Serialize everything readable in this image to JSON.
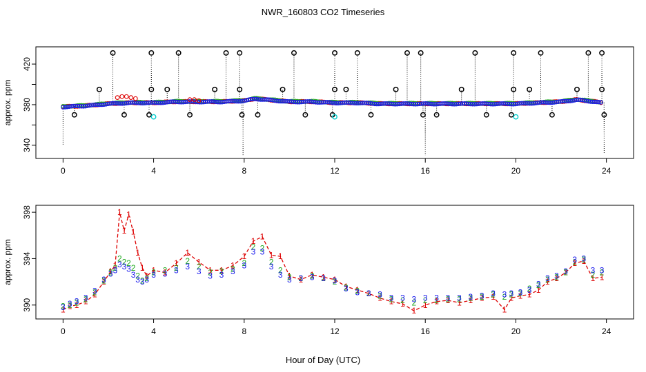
{
  "title": "NWR_160803  CO2 Timeseries",
  "xlabel": "Hour of Day (UTC)",
  "colors": {
    "s1": "#dd0000",
    "s2": "#22aa22",
    "s3": "#1a1aee",
    "flag": "#000000",
    "cyan": "#00cccc"
  },
  "chart_data": [
    {
      "type": "scatter",
      "panel": "top",
      "ylabel": "approx. ppm",
      "xlim": [
        -1.2,
        25.2
      ],
      "ylim": [
        327,
        437
      ],
      "xticks": [
        0,
        4,
        8,
        12,
        16,
        20,
        24
      ],
      "yticks": [
        340,
        360,
        380,
        400,
        420
      ],
      "ytick_labels": [
        "340",
        "",
        "380",
        "",
        "420"
      ],
      "baseline": [
        [
          0,
          378
        ],
        [
          1,
          379
        ],
        [
          2,
          381
        ],
        [
          3,
          382
        ],
        [
          4,
          382
        ],
        [
          5,
          383
        ],
        [
          6,
          383
        ],
        [
          7,
          383
        ],
        [
          8,
          384
        ],
        [
          8.5,
          386
        ],
        [
          9,
          385
        ],
        [
          10,
          383
        ],
        [
          11,
          383
        ],
        [
          12,
          382
        ],
        [
          13,
          382
        ],
        [
          14,
          381
        ],
        [
          15,
          381
        ],
        [
          16,
          381
        ],
        [
          17,
          381
        ],
        [
          18,
          381
        ],
        [
          19,
          381
        ],
        [
          20,
          381
        ],
        [
          21,
          382
        ],
        [
          22,
          383
        ],
        [
          22.7,
          385
        ],
        [
          23.5,
          383
        ],
        [
          23.8,
          382
        ]
      ],
      "red_bump": [
        [
          2.4,
          387
        ],
        [
          2.6,
          388
        ],
        [
          2.8,
          388
        ],
        [
          3.0,
          387
        ],
        [
          3.2,
          386
        ],
        [
          5.6,
          385
        ],
        [
          5.8,
          385
        ],
        [
          6.0,
          384
        ]
      ],
      "flags_high": [
        2.2,
        3.9,
        5.1,
        7.2,
        7.8,
        10.2,
        12.0,
        13.0,
        15.2,
        15.8,
        18.2,
        19.9,
        21.1,
        23.2,
        23.8
      ],
      "flags_mid": [
        1.6,
        3.9,
        4.6,
        6.7,
        7.8,
        9.7,
        12.0,
        12.5,
        14.7,
        17.6,
        19.9,
        20.6,
        22.7,
        23.8
      ],
      "flags_low": [
        0.5,
        2.7,
        3.8,
        5.6,
        7.9,
        8.6,
        10.7,
        11.9,
        13.6,
        15.9,
        16.5,
        18.7,
        19.8,
        21.6,
        23.9
      ],
      "cyan_points": [
        4.0,
        12.0,
        20.0
      ],
      "drops_low": [
        [
          0,
          340
        ],
        [
          7.95,
          330
        ],
        [
          16.0,
          330
        ],
        [
          23.9,
          332
        ]
      ],
      "drops_mid": [
        [
          16.0,
          352
        ],
        [
          23.9,
          352
        ]
      ],
      "flag_levels": {
        "high": 431,
        "mid": 395,
        "low": 370
      }
    },
    {
      "type": "scatter",
      "panel": "bottom",
      "ylabel": "approx. ppm",
      "xlim": [
        -1.2,
        25.2
      ],
      "ylim": [
        388.8,
        398.6
      ],
      "xticks": [
        0,
        4,
        8,
        12,
        16,
        20,
        24
      ],
      "yticks": [
        390,
        394,
        398
      ],
      "series": [
        {
          "name": "1",
          "label_char": "1",
          "color": "#dd0000",
          "values": [
            [
              0.0,
              389.6
            ],
            [
              0.3,
              389.9
            ],
            [
              0.6,
              390.0
            ],
            [
              1.0,
              390.3
            ],
            [
              1.4,
              390.9
            ],
            [
              1.8,
              392.0
            ],
            [
              2.1,
              392.9
            ],
            [
              2.3,
              393.4
            ],
            [
              2.5,
              398.0
            ],
            [
              2.7,
              396.4
            ],
            [
              2.9,
              397.8
            ],
            [
              3.1,
              396.3
            ],
            [
              3.3,
              394.5
            ],
            [
              3.5,
              393.2
            ],
            [
              3.7,
              392.5
            ],
            [
              4.0,
              393.0
            ],
            [
              4.5,
              392.8
            ],
            [
              5.0,
              393.6
            ],
            [
              5.5,
              394.5
            ],
            [
              6.0,
              393.7
            ],
            [
              6.5,
              393.0
            ],
            [
              7.0,
              393.0
            ],
            [
              7.5,
              393.4
            ],
            [
              8.0,
              394.2
            ],
            [
              8.4,
              395.5
            ],
            [
              8.8,
              395.9
            ],
            [
              9.2,
              394.3
            ],
            [
              9.6,
              394.2
            ],
            [
              10.0,
              392.5
            ],
            [
              10.5,
              392.2
            ],
            [
              11.0,
              392.6
            ],
            [
              11.5,
              392.4
            ],
            [
              12.0,
              392.2
            ],
            [
              12.5,
              391.6
            ],
            [
              13.0,
              391.3
            ],
            [
              13.5,
              391.0
            ],
            [
              14.0,
              390.6
            ],
            [
              14.5,
              390.3
            ],
            [
              15.0,
              390.1
            ],
            [
              15.5,
              389.5
            ],
            [
              16.0,
              390.0
            ],
            [
              16.5,
              390.3
            ],
            [
              17.0,
              390.4
            ],
            [
              17.5,
              390.2
            ],
            [
              18.0,
              390.4
            ],
            [
              18.5,
              390.6
            ],
            [
              19.0,
              390.7
            ],
            [
              19.5,
              389.6
            ],
            [
              19.8,
              390.6
            ],
            [
              20.2,
              390.8
            ],
            [
              20.6,
              390.9
            ],
            [
              21.0,
              391.3
            ],
            [
              21.4,
              392.0
            ],
            [
              21.8,
              392.3
            ],
            [
              22.2,
              392.8
            ],
            [
              22.6,
              393.6
            ],
            [
              23.0,
              393.8
            ],
            [
              23.4,
              392.3
            ],
            [
              23.8,
              392.4
            ]
          ]
        },
        {
          "name": "2",
          "label_char": "2",
          "color": "#22aa22",
          "values": [
            [
              0.0,
              389.9
            ],
            [
              0.3,
              390.0
            ],
            [
              0.6,
              390.2
            ],
            [
              1.0,
              390.5
            ],
            [
              1.4,
              391.1
            ],
            [
              1.8,
              392.1
            ],
            [
              2.1,
              392.8
            ],
            [
              2.3,
              393.2
            ],
            [
              2.5,
              394.0
            ],
            [
              2.7,
              393.7
            ],
            [
              2.9,
              393.6
            ],
            [
              3.1,
              393.2
            ],
            [
              3.3,
              392.5
            ],
            [
              3.5,
              392.1
            ],
            [
              3.7,
              392.3
            ],
            [
              4.0,
              392.8
            ],
            [
              4.5,
              393.0
            ],
            [
              5.0,
              393.2
            ],
            [
              5.5,
              393.8
            ],
            [
              6.0,
              393.3
            ],
            [
              6.5,
              392.8
            ],
            [
              7.0,
              392.9
            ],
            [
              7.5,
              393.1
            ],
            [
              8.0,
              393.6
            ],
            [
              8.4,
              395.0
            ],
            [
              8.8,
              394.9
            ],
            [
              9.2,
              393.7
            ],
            [
              9.6,
              393.0
            ],
            [
              10.0,
              392.4
            ],
            [
              10.5,
              392.3
            ],
            [
              11.0,
              392.5
            ],
            [
              11.5,
              392.3
            ],
            [
              12.0,
              392.0
            ],
            [
              12.5,
              391.5
            ],
            [
              13.0,
              391.2
            ],
            [
              13.5,
              391.0
            ],
            [
              14.0,
              390.8
            ],
            [
              14.5,
              390.5
            ],
            [
              15.0,
              390.4
            ],
            [
              15.5,
              390.2
            ],
            [
              16.0,
              390.4
            ],
            [
              16.5,
              390.4
            ],
            [
              17.0,
              390.5
            ],
            [
              17.5,
              390.5
            ],
            [
              18.0,
              390.6
            ],
            [
              18.5,
              390.7
            ],
            [
              19.0,
              390.9
            ],
            [
              19.5,
              390.7
            ],
            [
              19.8,
              390.9
            ],
            [
              20.2,
              391.0
            ],
            [
              20.6,
              391.4
            ],
            [
              21.0,
              391.7
            ],
            [
              21.4,
              392.2
            ],
            [
              21.8,
              392.4
            ],
            [
              22.2,
              392.8
            ],
            [
              22.6,
              393.7
            ],
            [
              23.0,
              393.9
            ],
            [
              23.4,
              392.6
            ],
            [
              23.8,
              392.8
            ]
          ]
        },
        {
          "name": "3",
          "label_char": "3",
          "color": "#1a1aee",
          "values": [
            [
              0.0,
              389.8
            ],
            [
              0.3,
              390.1
            ],
            [
              0.6,
              390.3
            ],
            [
              1.0,
              390.6
            ],
            [
              1.4,
              391.2
            ],
            [
              1.8,
              392.2
            ],
            [
              2.1,
              392.7
            ],
            [
              2.3,
              393.0
            ],
            [
              2.5,
              393.5
            ],
            [
              2.7,
              393.3
            ],
            [
              2.9,
              393.1
            ],
            [
              3.1,
              392.6
            ],
            [
              3.3,
              392.2
            ],
            [
              3.5,
              392.0
            ],
            [
              3.7,
              392.2
            ],
            [
              4.0,
              392.6
            ],
            [
              4.5,
              392.7
            ],
            [
              5.0,
              393.0
            ],
            [
              5.5,
              393.3
            ],
            [
              6.0,
              392.9
            ],
            [
              6.5,
              392.5
            ],
            [
              7.0,
              392.6
            ],
            [
              7.5,
              392.9
            ],
            [
              8.0,
              393.4
            ],
            [
              8.4,
              394.6
            ],
            [
              8.8,
              394.6
            ],
            [
              9.2,
              393.3
            ],
            [
              9.6,
              392.6
            ],
            [
              10.0,
              392.2
            ],
            [
              10.5,
              392.3
            ],
            [
              11.0,
              392.4
            ],
            [
              11.5,
              392.3
            ],
            [
              12.0,
              392.1
            ],
            [
              12.5,
              391.4
            ],
            [
              13.0,
              391.1
            ],
            [
              13.5,
              391.0
            ],
            [
              14.0,
              390.9
            ],
            [
              14.5,
              390.6
            ],
            [
              15.0,
              390.6
            ],
            [
              15.5,
              390.5
            ],
            [
              16.0,
              390.6
            ],
            [
              16.5,
              390.6
            ],
            [
              17.0,
              390.6
            ],
            [
              17.5,
              390.6
            ],
            [
              18.0,
              390.7
            ],
            [
              18.5,
              390.8
            ],
            [
              19.0,
              391.0
            ],
            [
              19.5,
              390.9
            ],
            [
              19.8,
              391.0
            ],
            [
              20.2,
              391.1
            ],
            [
              20.6,
              391.3
            ],
            [
              21.0,
              391.8
            ],
            [
              21.4,
              392.3
            ],
            [
              21.8,
              392.5
            ],
            [
              22.2,
              392.9
            ],
            [
              22.6,
              393.9
            ],
            [
              23.0,
              394.0
            ],
            [
              23.4,
              393.0
            ],
            [
              23.8,
              393.0
            ]
          ]
        }
      ]
    }
  ]
}
